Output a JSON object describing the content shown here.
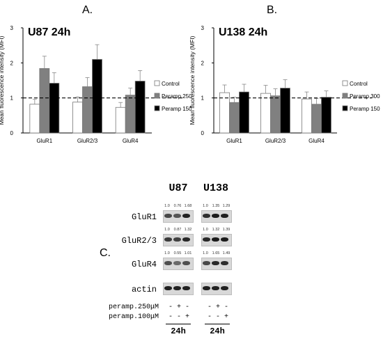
{
  "panels": {
    "A": "A.",
    "B": "B.",
    "C": "C."
  },
  "chart_data": [
    {
      "type": "bar",
      "title": "U87 24h",
      "ylabel": "Mean fluorescence intensity (MFI)",
      "xlabel": "",
      "categories": [
        "GluR1",
        "GluR2/3",
        "GluR4"
      ],
      "ylim": [
        0,
        3
      ],
      "yticks": [
        "0",
        "1",
        "2",
        "3"
      ],
      "reference_line": 1,
      "legend_position": "right",
      "series": [
        {
          "name": "Control",
          "color": "#ffffff",
          "values": [
            0.82,
            0.88,
            0.73
          ],
          "errors": [
            0.14,
            0.15,
            0.14
          ]
        },
        {
          "name": "Peramp 250",
          "color": "#808080",
          "values": [
            1.84,
            1.32,
            1.08
          ],
          "errors": [
            0.35,
            0.26,
            0.2
          ]
        },
        {
          "name": "Peramp 150",
          "color": "#000000",
          "values": [
            1.42,
            2.1,
            1.48
          ],
          "errors": [
            0.3,
            0.42,
            0.3
          ]
        }
      ]
    },
    {
      "type": "bar",
      "title": "U138 24h",
      "ylabel": "Mean fluorescence intensity (MFI)",
      "xlabel": "",
      "categories": [
        "GluR1",
        "GluR2/3",
        "GluR4"
      ],
      "ylim": [
        0,
        3
      ],
      "yticks": [
        "0",
        "1",
        "2",
        "3"
      ],
      "reference_line": 1,
      "legend_position": "right",
      "series": [
        {
          "name": "Control",
          "color": "#ffffff",
          "values": [
            1.15,
            1.13,
            0.97
          ],
          "errors": [
            0.22,
            0.23,
            0.2
          ]
        },
        {
          "name": "Peramp 300",
          "color": "#808080",
          "values": [
            0.87,
            1.06,
            0.82
          ],
          "errors": [
            0.15,
            0.2,
            0.16
          ]
        },
        {
          "name": "Peramp 150",
          "color": "#000000",
          "values": [
            1.17,
            1.28,
            1.02
          ],
          "errors": [
            0.22,
            0.24,
            0.18
          ]
        }
      ]
    }
  ],
  "blot": {
    "cell_lines": [
      "U87",
      "U138"
    ],
    "rows": [
      {
        "label": "GluR1",
        "u87": [
          "1.0",
          "0.76",
          "1.68"
        ],
        "u138": [
          "1.0",
          "1.35",
          "1.29"
        ]
      },
      {
        "label": "GluR2/3",
        "u87": [
          "1.0",
          "0.87",
          "1.32"
        ],
        "u138": [
          "1.0",
          "1.32",
          "1.39"
        ]
      },
      {
        "label": "GluR4",
        "u87": [
          "1.0",
          "0.55",
          "1.01"
        ],
        "u138": [
          "1.0",
          "1.65",
          "1.49"
        ]
      },
      {
        "label": "actin",
        "u87": [],
        "u138": []
      }
    ],
    "band_intensity": {
      "u87": [
        [
          0.6,
          0.5,
          0.9
        ],
        [
          0.7,
          0.65,
          0.85
        ],
        [
          0.55,
          0.35,
          0.55
        ],
        [
          0.9,
          0.9,
          0.9
        ]
      ],
      "u138": [
        [
          0.8,
          0.95,
          0.9
        ],
        [
          0.85,
          0.95,
          0.95
        ],
        [
          0.6,
          0.85,
          0.8
        ],
        [
          0.9,
          0.9,
          0.9
        ]
      ]
    },
    "treatments": [
      {
        "label": "peramp.250μM",
        "signs": [
          "-",
          "+",
          "-"
        ]
      },
      {
        "label": "peramp.100μM",
        "signs": [
          "-",
          "-",
          "+"
        ]
      }
    ],
    "timepoint": "24h"
  }
}
